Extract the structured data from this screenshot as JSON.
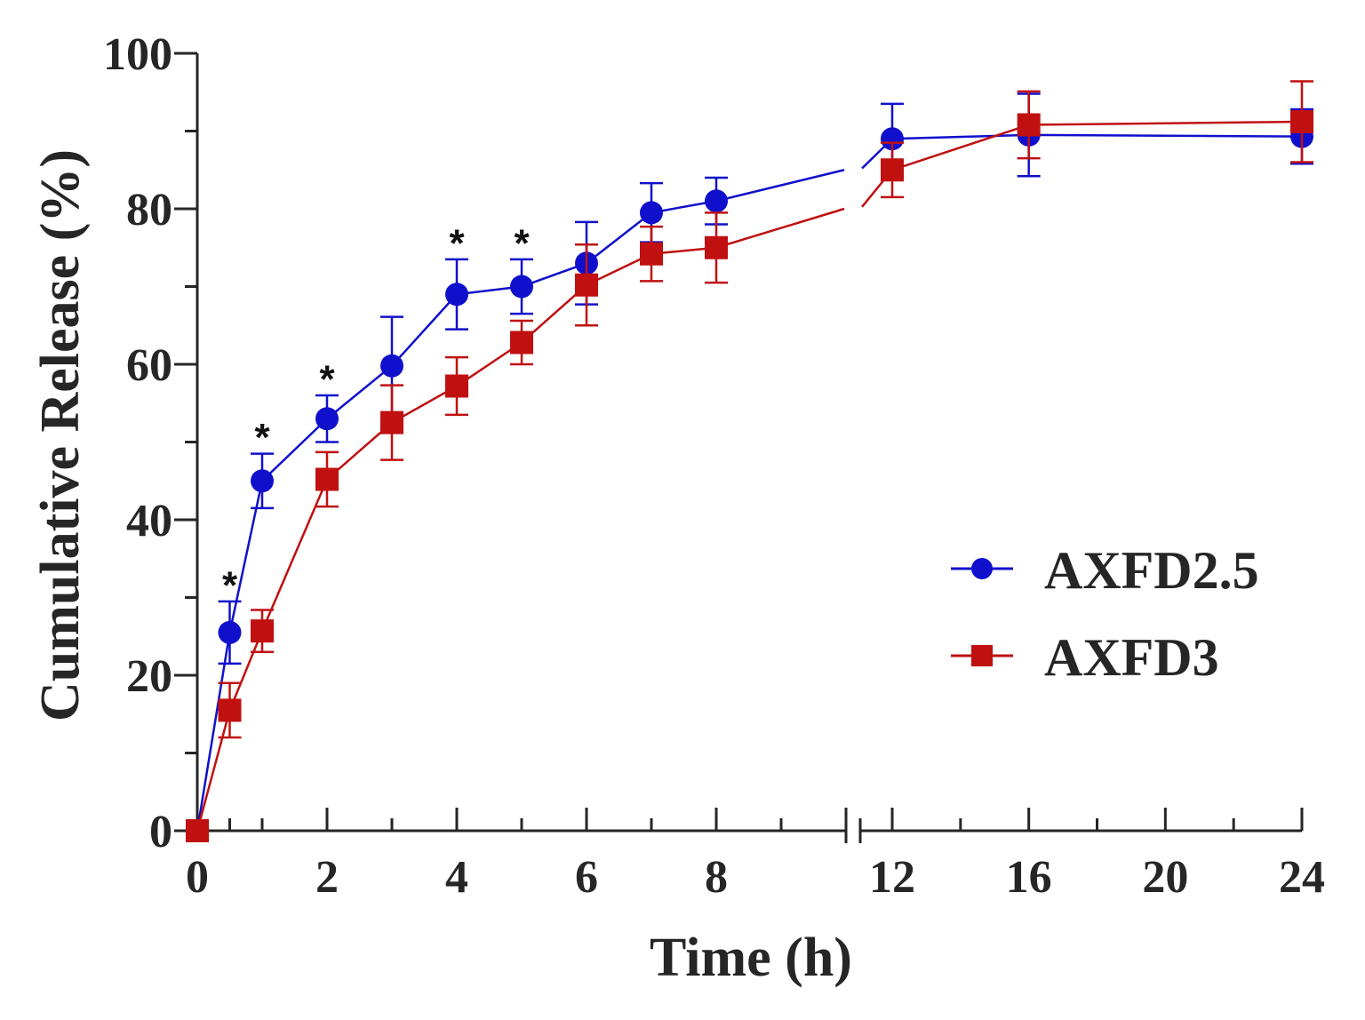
{
  "chart_data": {
    "type": "line",
    "xlabel": "Time (h)",
    "ylabel": "Cumulative Release (%)",
    "ylim": [
      0,
      100
    ],
    "x_axis_break": {
      "segment1": [
        0,
        10
      ],
      "segment2": [
        10.7,
        24
      ]
    },
    "x_tick_labels": [
      "0",
      "2",
      "4",
      "6",
      "8",
      "12",
      "16",
      "20",
      "24"
    ],
    "y_tick_labels": [
      "0",
      "20",
      "40",
      "60",
      "80",
      "100"
    ],
    "series": [
      {
        "name": "AXFD2.5",
        "color": "#1010cc",
        "marker": "circle",
        "x": [
          0,
          0.5,
          1,
          2,
          3,
          4,
          5,
          6,
          7,
          8,
          12,
          16,
          24
        ],
        "values": [
          0,
          25.5,
          45,
          53,
          59.8,
          69,
          70,
          73,
          79.5,
          81,
          89,
          89.5,
          89.3
        ],
        "errors": [
          0,
          4,
          3.5,
          3,
          6.3,
          4.5,
          3.5,
          5.3,
          3.8,
          3,
          4.5,
          5.3,
          3.5
        ]
      },
      {
        "name": "AXFD3",
        "color": "#c01010",
        "marker": "square",
        "x": [
          0,
          0.5,
          1,
          2,
          3,
          4,
          5,
          6,
          7,
          8,
          12,
          16,
          24
        ],
        "values": [
          0,
          15.5,
          25.7,
          45.2,
          52.5,
          57.2,
          62.8,
          70.2,
          74.2,
          75,
          85,
          90.8,
          91.2
        ],
        "errors": [
          0,
          3.5,
          2.7,
          3.5,
          4.8,
          3.7,
          2.8,
          5.2,
          3.5,
          4.5,
          3.5,
          4.3,
          5.2
        ]
      }
    ],
    "annotations": [
      {
        "x": 0.5,
        "y": 31.5,
        "text": "*"
      },
      {
        "x": 1,
        "y": 50.5,
        "text": "*"
      },
      {
        "x": 2,
        "y": 58,
        "text": "*"
      },
      {
        "x": 4,
        "y": 75.5,
        "text": "*"
      },
      {
        "x": 5,
        "y": 75.5,
        "text": "*"
      }
    ],
    "legend": {
      "position": "center-right",
      "items": [
        "AXFD2.5",
        "AXFD3"
      ]
    }
  }
}
